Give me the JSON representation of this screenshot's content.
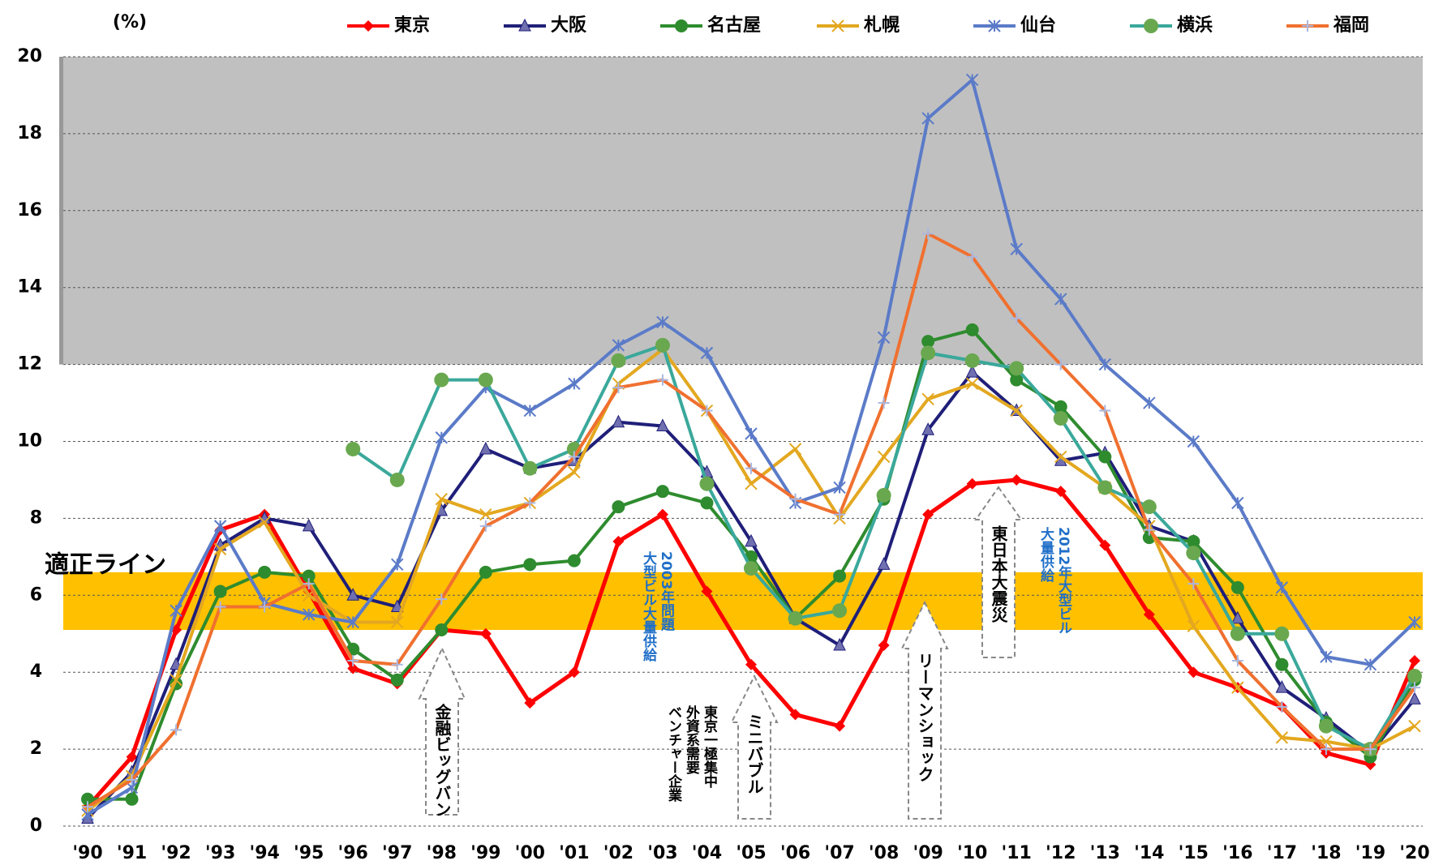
{
  "chart_data": {
    "type": "line",
    "unit_label": "(%)",
    "categories": [
      "'90",
      "'91",
      "'92",
      "'93",
      "'94",
      "'95",
      "'96",
      "'97",
      "'98",
      "'99",
      "'00",
      "'01",
      "'02",
      "'03",
      "'04",
      "'05",
      "'06",
      "'07",
      "'08",
      "'09",
      "'10",
      "'11",
      "'12",
      "'13",
      "'14",
      "'15",
      "'16",
      "'17",
      "'18",
      "'19",
      "'20"
    ],
    "ylim": [
      0,
      20
    ],
    "yticks": [
      0,
      2,
      4,
      6,
      8,
      10,
      12,
      14,
      16,
      18,
      20
    ],
    "grid": true,
    "bands": [
      {
        "from": 12,
        "to": 20,
        "color": "#c0c0c0"
      },
      {
        "from": 5.1,
        "to": 6.6,
        "color": "#ffc000",
        "label": "適正ライン"
      }
    ],
    "series": [
      {
        "name": "東京",
        "color": "#ff0000",
        "marker": "diamond",
        "values": [
          0.5,
          1.8,
          5.1,
          7.7,
          8.1,
          6.1,
          4.1,
          3.7,
          5.1,
          5.0,
          3.2,
          4.0,
          7.4,
          8.1,
          6.1,
          4.2,
          2.9,
          2.6,
          4.7,
          8.1,
          8.9,
          9.0,
          8.7,
          7.3,
          5.5,
          4.0,
          3.6,
          3.1,
          1.9,
          1.6,
          4.3
        ]
      },
      {
        "name": "大阪",
        "color": "#1f1f7a",
        "marker": "triangle",
        "values": [
          0.2,
          1.4,
          4.2,
          7.3,
          8.0,
          7.8,
          6.0,
          5.7,
          8.2,
          9.8,
          9.3,
          9.5,
          10.5,
          10.4,
          9.2,
          7.4,
          5.4,
          4.7,
          6.8,
          10.3,
          11.8,
          10.8,
          9.5,
          9.7,
          7.8,
          7.4,
          5.4,
          3.6,
          2.8,
          1.9,
          3.3
        ]
      },
      {
        "name": "名古屋",
        "color": "#2e8b2e",
        "marker": "circle",
        "values": [
          0.7,
          0.7,
          3.7,
          6.1,
          6.6,
          6.5,
          4.6,
          3.8,
          5.1,
          6.6,
          6.8,
          6.9,
          8.3,
          8.7,
          8.4,
          7.0,
          5.4,
          6.5,
          8.5,
          12.6,
          12.9,
          11.6,
          10.9,
          9.6,
          7.5,
          7.4,
          6.2,
          4.2,
          2.7,
          1.8,
          3.8
        ]
      },
      {
        "name": "札幌",
        "color": "#e3a820",
        "marker": "x",
        "values": [
          0.4,
          1.3,
          3.8,
          7.2,
          7.9,
          6.0,
          5.3,
          5.3,
          8.5,
          8.1,
          8.4,
          9.2,
          11.5,
          12.4,
          10.8,
          8.9,
          9.8,
          8.0,
          9.6,
          11.1,
          11.5,
          10.8,
          9.6,
          8.8,
          7.8,
          5.2,
          3.6,
          2.3,
          2.2,
          2.0,
          2.6
        ]
      },
      {
        "name": "仙台",
        "color": "#5b7bc8",
        "marker": "asterisk",
        "values": [
          0.3,
          1.0,
          5.6,
          7.8,
          5.8,
          5.5,
          5.3,
          6.8,
          10.1,
          11.4,
          10.8,
          11.5,
          12.5,
          13.1,
          12.3,
          10.2,
          8.4,
          8.8,
          12.7,
          18.4,
          19.4,
          15.0,
          13.7,
          12.0,
          11.0,
          10.0,
          8.4,
          6.2,
          4.4,
          4.2,
          5.3
        ]
      },
      {
        "name": "横浜",
        "color": "#3aa89a",
        "marker": "bigcircle",
        "values": [
          null,
          null,
          null,
          null,
          null,
          null,
          9.8,
          9.0,
          11.6,
          11.6,
          9.3,
          9.8,
          12.1,
          12.5,
          8.9,
          6.7,
          5.4,
          5.6,
          8.6,
          12.3,
          12.1,
          11.9,
          10.6,
          8.8,
          8.3,
          7.1,
          5.0,
          5.0,
          2.6,
          2.0,
          3.9
        ]
      },
      {
        "name": "福岡",
        "color": "#f07030",
        "marker": "plus",
        "values": [
          0.5,
          1.2,
          2.5,
          5.7,
          5.7,
          6.3,
          4.3,
          4.2,
          5.9,
          7.8,
          8.4,
          9.6,
          11.4,
          11.6,
          10.8,
          9.3,
          8.5,
          8.1,
          11.0,
          15.4,
          14.8,
          13.2,
          12.0,
          10.8,
          7.7,
          6.3,
          4.3,
          3.1,
          2.0,
          2.0,
          3.6
        ]
      }
    ],
    "annotations": [
      {
        "lines": [
          "金融ビッグバン"
        ],
        "color": "#000000"
      },
      {
        "lines": [
          "2003年問題",
          "大型ビル大量供給"
        ],
        "color": "#1f6fc8"
      },
      {
        "lines": [
          "東京一極集中",
          "外資系需要",
          "ベンチャー企業"
        ],
        "color": "#000000"
      },
      {
        "lines": [
          "ミニバブル"
        ],
        "color": "#000000"
      },
      {
        "lines": [
          "リーマンショック"
        ],
        "color": "#000000"
      },
      {
        "lines": [
          "東日本大震災"
        ],
        "color": "#000000"
      },
      {
        "lines": [
          "2012年大型ビル",
          "大量供給"
        ],
        "color": "#1f6fc8"
      }
    ]
  }
}
